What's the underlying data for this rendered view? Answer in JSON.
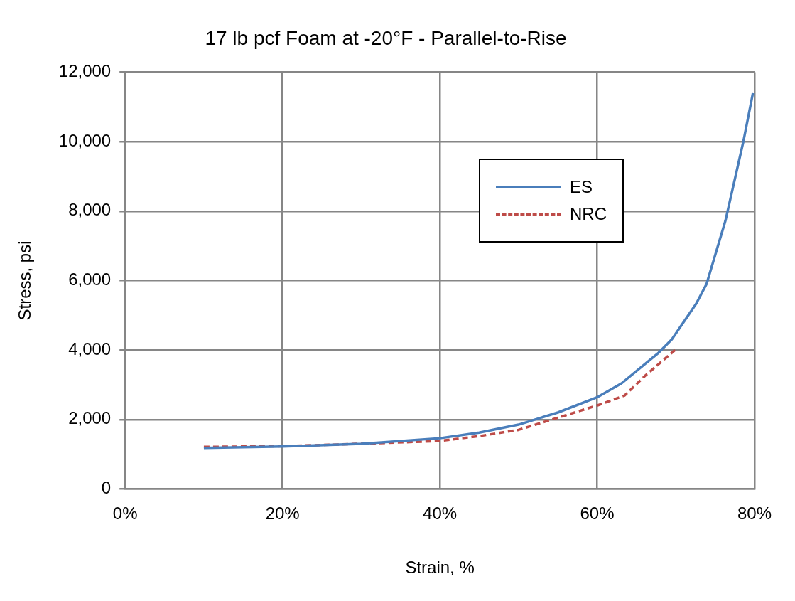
{
  "chart_data": {
    "type": "line",
    "title": "17 lb pcf Foam at -20°F - Parallel-to-Rise",
    "xlabel": "Strain, %",
    "ylabel": "Stress, psi",
    "xlim": [
      0,
      80
    ],
    "xticks": [
      {
        "value": 0,
        "label": "0%"
      },
      {
        "value": 20,
        "label": "20%"
      },
      {
        "value": 40,
        "label": "40%"
      },
      {
        "value": 60,
        "label": "60%"
      },
      {
        "value": 80,
        "label": "80%"
      }
    ],
    "ylim": [
      0,
      12000
    ],
    "yticks": [
      0,
      {
        "value": 2000,
        "label": "2,000"
      },
      {
        "value": 4000,
        "label": "4,000"
      },
      {
        "value": 6000,
        "label": "6,000"
      },
      {
        "value": 8000,
        "label": "8,000"
      },
      {
        "value": 10000,
        "label": "10,000"
      },
      {
        "value": 12000,
        "label": "12,000"
      }
    ],
    "grid": true,
    "legend": "top right",
    "marker": "none",
    "series": [
      {
        "name": "ES",
        "color": "#4a7ebb",
        "line_style": "solid",
        "x": [
          10,
          20,
          30,
          40,
          45,
          50,
          55,
          60.1,
          63.1,
          67.8,
          69.5,
          72.6,
          73.9,
          76.3,
          78.6,
          79.8
        ],
        "values": [
          1180,
          1220,
          1300,
          1460,
          1620,
          1850,
          2200,
          2650,
          3040,
          3920,
          4310,
          5340,
          5900,
          7720,
          10020,
          11400
        ]
      },
      {
        "name": "NRC",
        "color": "#be4b48",
        "line_style": "dashed",
        "x": [
          10,
          20,
          30,
          39.9,
          45,
          50,
          54,
          60.1,
          63.5,
          66.2,
          69.9
        ],
        "values": [
          1210,
          1230,
          1300,
          1380,
          1520,
          1700,
          1980,
          2410,
          2690,
          3280,
          4000
        ]
      }
    ]
  }
}
